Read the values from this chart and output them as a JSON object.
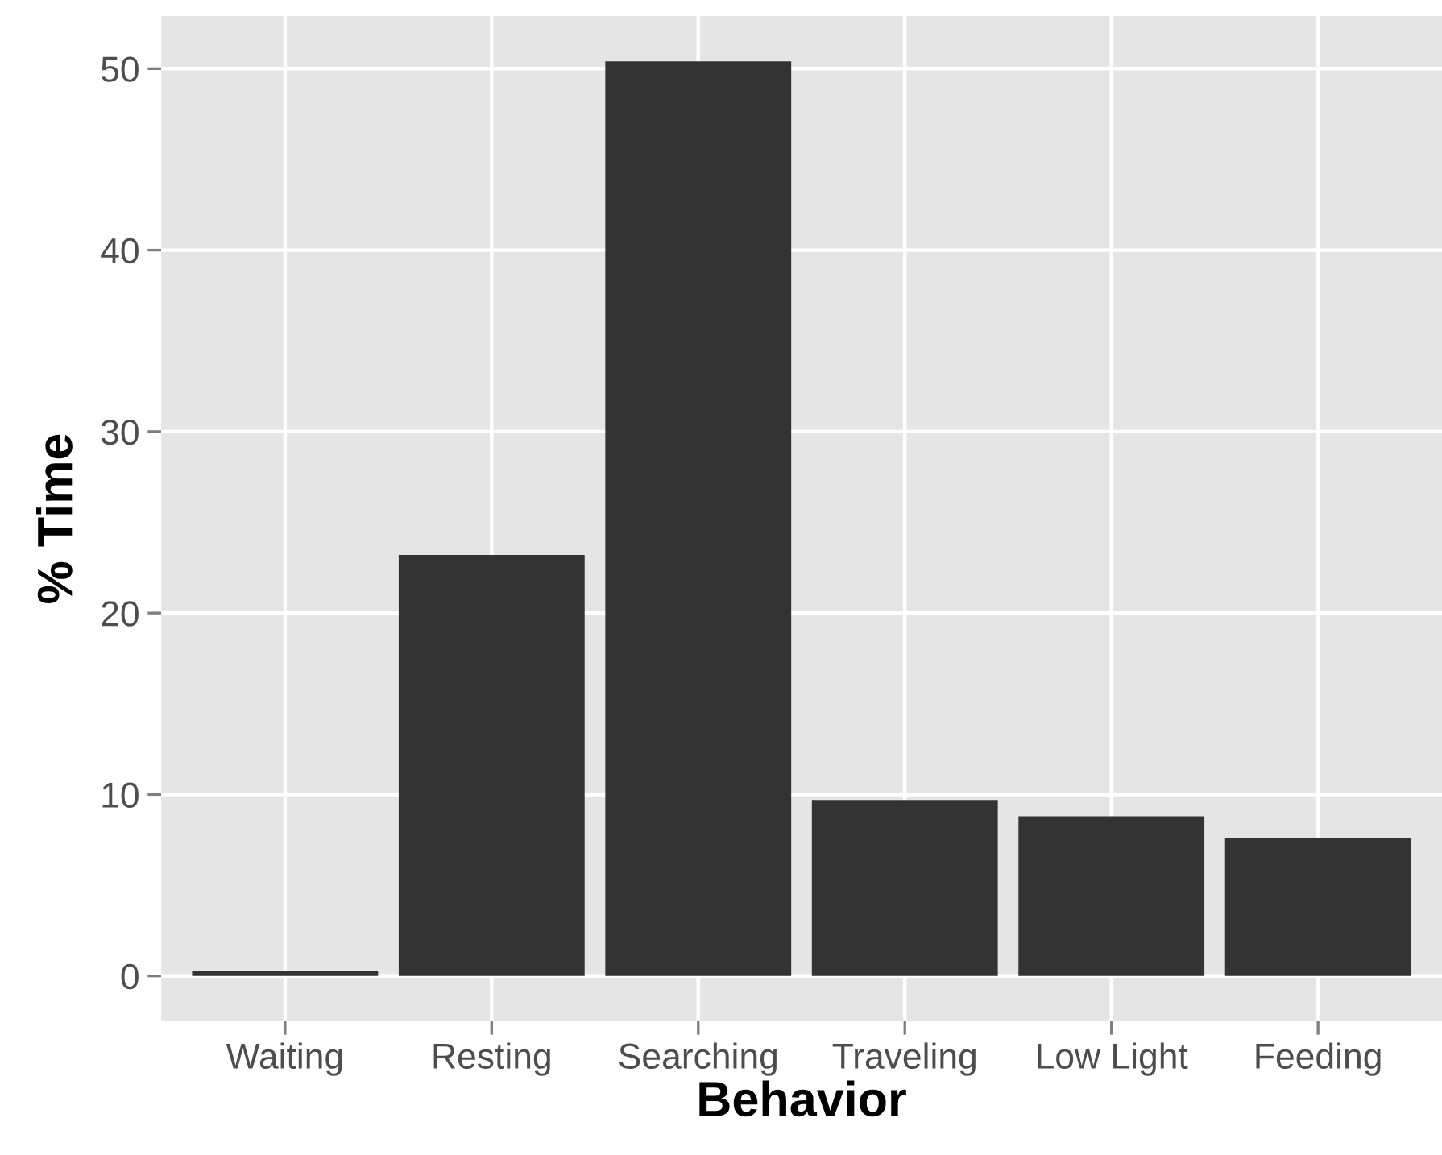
{
  "chart_data": {
    "type": "bar",
    "xlabel": "Behavior",
    "ylabel": "% Time",
    "categories": [
      "Waiting",
      "Resting",
      "Searching",
      "Traveling",
      "Low Light",
      "Feeding"
    ],
    "values": [
      0.3,
      23.2,
      50.4,
      9.7,
      8.8,
      7.6
    ],
    "color": "#333333",
    "ylim": [
      -2.5,
      52.9
    ],
    "yticks": [
      0,
      10,
      20,
      30,
      40,
      50
    ],
    "grid": true
  }
}
